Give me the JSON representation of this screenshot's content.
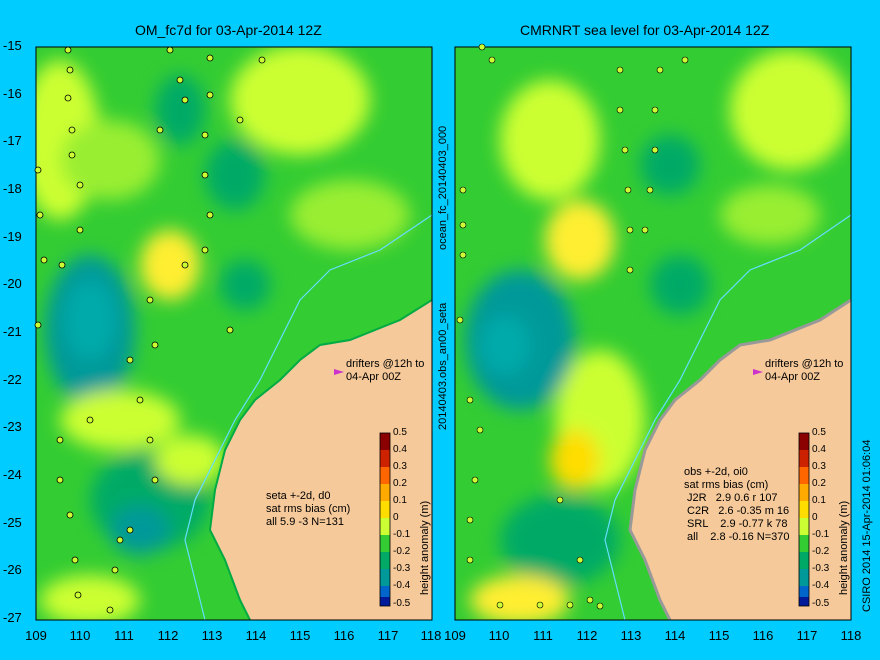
{
  "titles": {
    "left": "OM_fc7d for 03-Apr-2014 12Z",
    "right": "CMRNRT sea level  for 03-Apr-2014 12Z"
  },
  "axes": {
    "y_ticks": [
      "-15",
      "-16",
      "-17",
      "-18",
      "-19",
      "-20",
      "-21",
      "-22",
      "-23",
      "-24",
      "-25",
      "-26",
      "-27"
    ],
    "left_x_ticks": [
      "109",
      "110",
      "111",
      "112",
      "113",
      "114",
      "115",
      "116",
      "117",
      "118"
    ],
    "right_x_ticks": [
      "109",
      "110",
      "111",
      "112",
      "113",
      "114",
      "115",
      "116",
      "117",
      "118"
    ]
  },
  "left_panel": {
    "drifters_note": "drifters @12h to\n04-Apr 00Z",
    "stats": "seta +-2d, d0\nsat rms bias (cm)\nall 5.9 -3 N=131"
  },
  "right_panel": {
    "drifters_note": "drifters @12h to\n04-Apr 00Z",
    "stats": "obs +-2d, oi0\nsat rms bias (cm)\n J2R   2.9 0.6 r 107\n C2R   2.6 -0.35 m 16\n SRL    2.9 -0.77 k 78\n all    2.8 -0.16 N=370"
  },
  "side_labels": {
    "center": "20140403.obs_an00_seta",
    "center_top": "ocean_fc_20140403_000",
    "right": "CSIRO 2014   15-Apr-2014 01:06:04"
  },
  "colorbar": {
    "title": "height anomaly (m)",
    "ticks": [
      "0.5",
      "0.4",
      "0.3",
      "0.2",
      "0.1",
      "0",
      "-0.1",
      "-0.2",
      "-0.3",
      "-0.4",
      "-0.5"
    ],
    "colors": [
      "#8b0000",
      "#cc2200",
      "#ff6600",
      "#ffaa00",
      "#ffdd00",
      "#ccff33",
      "#33cc33",
      "#00aa66",
      "#009999",
      "#0066cc",
      "#001a99"
    ]
  },
  "colors": {
    "background": "#00ccff",
    "land": "#f5c99a",
    "ocean_base": "#33cc33",
    "high": "#ccff33",
    "low": "#009999",
    "drifter": "#cc33cc"
  }
}
